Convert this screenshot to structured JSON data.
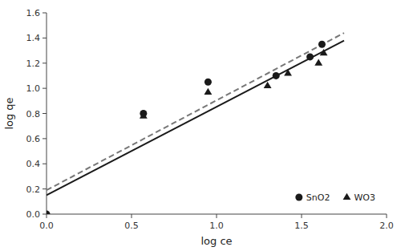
{
  "chart_data": {
    "type": "scatter",
    "xlabel": "log ce",
    "ylabel": "log qe",
    "xlim": [
      0,
      2
    ],
    "ylim": [
      0,
      1.6
    ],
    "xticks": [
      {
        "value": 0.0,
        "label": "0.0"
      },
      0.5,
      {
        "value": 1.0,
        "label": "1.0"
      },
      1.5,
      {
        "value": 2.0,
        "label": "2.0"
      }
    ],
    "yticks": [
      {
        "value": 0.0,
        "label": "0.0"
      },
      0.2,
      0.4,
      0.6,
      0.8,
      {
        "value": 1.0,
        "label": "1.0"
      },
      1.2,
      1.4,
      1.6
    ],
    "grid": false,
    "legend": "lower right",
    "series": [
      {
        "type": "line",
        "line_style": "dashed",
        "color": "#777777",
        "x": [
          0.0,
          1.75
        ],
        "values": [
          0.19,
          1.44
        ]
      },
      {
        "type": "line",
        "line_style": "solid",
        "color": "#1a1a1a",
        "x": [
          0.0,
          1.75
        ],
        "values": [
          0.15,
          1.38
        ]
      },
      {
        "name": "SnO2",
        "type": "scatter",
        "marker": "circle",
        "color": "#1a1a1a",
        "x": [
          0.0,
          0.57,
          0.95,
          1.35,
          1.55,
          1.62
        ],
        "values": [
          0.0,
          0.8,
          1.05,
          1.1,
          1.25,
          1.35
        ]
      },
      {
        "name": "WO3",
        "type": "scatter",
        "marker": "triangle",
        "color": "#1a1a1a",
        "x": [
          0.57,
          0.95,
          1.3,
          1.42,
          1.6,
          1.63
        ],
        "values": [
          0.78,
          0.97,
          1.02,
          1.12,
          1.2,
          1.28
        ]
      }
    ]
  }
}
